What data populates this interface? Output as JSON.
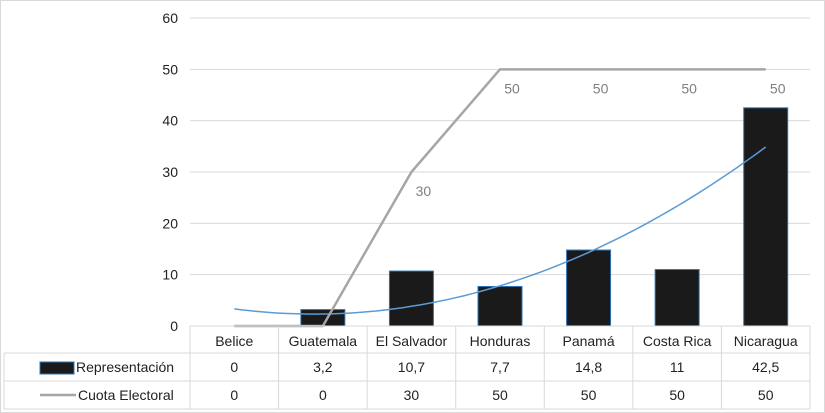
{
  "chart_data": {
    "type": "bar",
    "categories": [
      "Belice",
      "Guatemala",
      "El Salvador",
      "Honduras",
      "Panamá",
      "Costa Rica",
      "Nicaragua"
    ],
    "series": [
      {
        "name": "Representación",
        "kind": "bar",
        "values": [
          0,
          3.2,
          10.7,
          7.7,
          14.8,
          11,
          42.5
        ],
        "display_values": [
          "0",
          "3,2",
          "10,7",
          "7,7",
          "14,8",
          "11",
          "42,5"
        ],
        "color": "#1a1a1a",
        "edge_color": "#2e75b6"
      },
      {
        "name": "Cuota Electoral",
        "kind": "line",
        "values": [
          0,
          0,
          30,
          50,
          50,
          50,
          50
        ],
        "display_values": [
          "0",
          "0",
          "30",
          "50",
          "50",
          "50",
          "50"
        ],
        "color": "#a6a6a6"
      }
    ],
    "trendline": {
      "series": "Representación",
      "type": "polynomial",
      "color": "#5b9bd5"
    },
    "data_labels": {
      "series": "Cuota Electoral",
      "categories": [
        "El Salvador",
        "Honduras",
        "Panamá",
        "Costa Rica",
        "Nicaragua"
      ],
      "values": [
        "30",
        "50",
        "50",
        "50",
        "50"
      ]
    },
    "y_ticks": [
      "0",
      "10",
      "20",
      "30",
      "40",
      "50",
      "60"
    ],
    "ylim": [
      0,
      60
    ],
    "grid": true,
    "data_table": true,
    "title": "",
    "xlabel": "",
    "ylabel": ""
  }
}
